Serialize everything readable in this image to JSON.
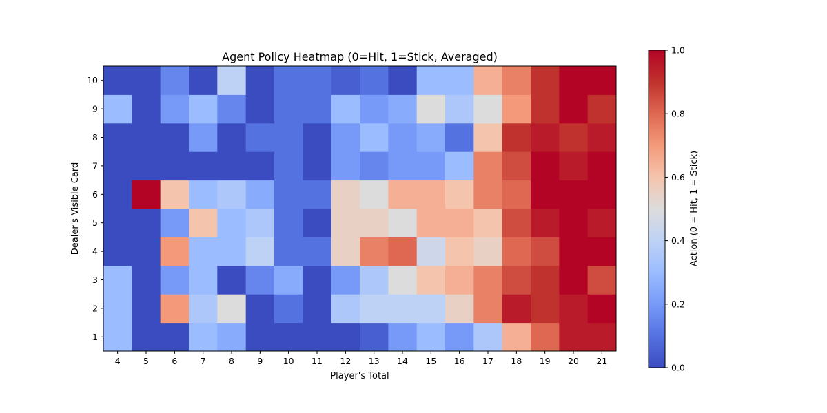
{
  "chart_data": {
    "type": "heatmap",
    "title": "Agent Policy Heatmap (0=Hit, 1=Stick, Averaged)",
    "xlabel": "Player's Total",
    "ylabel": "Dealer's Visible Card",
    "x": [
      4,
      5,
      6,
      7,
      8,
      9,
      10,
      11,
      12,
      13,
      14,
      15,
      16,
      17,
      18,
      19,
      20,
      21
    ],
    "y": [
      1,
      2,
      3,
      4,
      5,
      6,
      7,
      8,
      9,
      10
    ],
    "colorscale": "coolwarm",
    "zlim": [
      0,
      1
    ],
    "colorbar": {
      "label": "Action (0 = Hit, 1 = Stick)",
      "ticks": [
        "0.0",
        "0.2",
        "0.4",
        "0.6",
        "0.8",
        "1.0"
      ]
    },
    "values": [
      [
        0.3,
        0.0,
        0.0,
        0.3,
        0.25,
        0.0,
        0.0,
        0.0,
        0.0,
        0.05,
        0.2,
        0.3,
        0.2,
        0.35,
        0.65,
        0.8,
        0.95,
        0.95
      ],
      [
        0.3,
        0.0,
        0.7,
        0.35,
        0.5,
        0.0,
        0.1,
        0.0,
        0.35,
        0.4,
        0.4,
        0.4,
        0.55,
        0.75,
        0.95,
        0.9,
        0.95,
        1.0
      ],
      [
        0.3,
        0.0,
        0.2,
        0.3,
        0.0,
        0.15,
        0.25,
        0.0,
        0.2,
        0.35,
        0.5,
        0.6,
        0.65,
        0.75,
        0.85,
        0.9,
        1.0,
        0.85
      ],
      [
        0.0,
        0.0,
        0.7,
        0.3,
        0.3,
        0.4,
        0.1,
        0.1,
        0.55,
        0.75,
        0.8,
        0.45,
        0.6,
        0.55,
        0.8,
        0.85,
        1.0,
        1.0
      ],
      [
        0.0,
        0.0,
        0.2,
        0.6,
        0.3,
        0.35,
        0.1,
        0.0,
        0.55,
        0.55,
        0.5,
        0.65,
        0.65,
        0.6,
        0.85,
        0.95,
        1.0,
        0.95
      ],
      [
        0.0,
        1.0,
        0.6,
        0.3,
        0.35,
        0.25,
        0.1,
        0.1,
        0.55,
        0.5,
        0.65,
        0.65,
        0.6,
        0.75,
        0.8,
        1.0,
        1.0,
        1.0
      ],
      [
        0.0,
        0.0,
        0.0,
        0.0,
        0.0,
        0.0,
        0.1,
        0.0,
        0.2,
        0.15,
        0.2,
        0.2,
        0.3,
        0.75,
        0.85,
        1.0,
        0.95,
        1.0
      ],
      [
        0.0,
        0.0,
        0.0,
        0.2,
        0.0,
        0.1,
        0.1,
        0.0,
        0.2,
        0.3,
        0.2,
        0.25,
        0.1,
        0.6,
        0.9,
        0.95,
        0.9,
        0.95
      ],
      [
        0.3,
        0.0,
        0.2,
        0.3,
        0.15,
        0.0,
        0.1,
        0.1,
        0.3,
        0.2,
        0.25,
        0.5,
        0.35,
        0.5,
        0.7,
        0.9,
        1.0,
        0.9
      ],
      [
        0.0,
        0.0,
        0.15,
        0.0,
        0.4,
        0.0,
        0.1,
        0.1,
        0.05,
        0.1,
        0.0,
        0.3,
        0.3,
        0.65,
        0.75,
        0.9,
        1.0,
        1.0
      ]
    ]
  }
}
